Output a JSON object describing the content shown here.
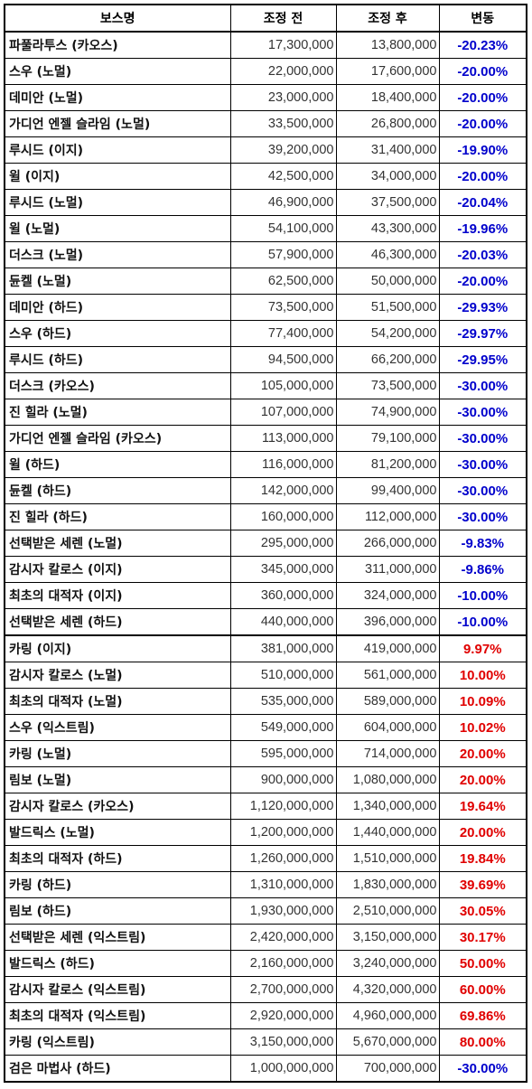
{
  "headers": {
    "boss": "보스명",
    "before": "조정 전",
    "after": "조정 후",
    "change": "변동"
  },
  "colors": {
    "decrease": "#0000cc",
    "increase": "#e00000"
  },
  "rows": [
    {
      "boss": "파풀라투스 (카오스)",
      "before": "17,300,000",
      "after": "13,800,000",
      "change": "-20.23%",
      "dir": "neg"
    },
    {
      "boss": "스우 (노멀)",
      "before": "22,000,000",
      "after": "17,600,000",
      "change": "-20.00%",
      "dir": "neg"
    },
    {
      "boss": "데미안 (노멀)",
      "before": "23,000,000",
      "after": "18,400,000",
      "change": "-20.00%",
      "dir": "neg"
    },
    {
      "boss": "가디언 엔젤 슬라임 (노멀)",
      "before": "33,500,000",
      "after": "26,800,000",
      "change": "-20.00%",
      "dir": "neg"
    },
    {
      "boss": "루시드 (이지)",
      "before": "39,200,000",
      "after": "31,400,000",
      "change": "-19.90%",
      "dir": "neg"
    },
    {
      "boss": "윌 (이지)",
      "before": "42,500,000",
      "after": "34,000,000",
      "change": "-20.00%",
      "dir": "neg"
    },
    {
      "boss": "루시드 (노멀)",
      "before": "46,900,000",
      "after": "37,500,000",
      "change": "-20.04%",
      "dir": "neg"
    },
    {
      "boss": "윌 (노멀)",
      "before": "54,100,000",
      "after": "43,300,000",
      "change": "-19.96%",
      "dir": "neg"
    },
    {
      "boss": "더스크 (노멀)",
      "before": "57,900,000",
      "after": "46,300,000",
      "change": "-20.03%",
      "dir": "neg"
    },
    {
      "boss": "듄켈 (노멀)",
      "before": "62,500,000",
      "after": "50,000,000",
      "change": "-20.00%",
      "dir": "neg"
    },
    {
      "boss": "데미안 (하드)",
      "before": "73,500,000",
      "after": "51,500,000",
      "change": "-29.93%",
      "dir": "neg"
    },
    {
      "boss": "스우 (하드)",
      "before": "77,400,000",
      "after": "54,200,000",
      "change": "-29.97%",
      "dir": "neg"
    },
    {
      "boss": "루시드 (하드)",
      "before": "94,500,000",
      "after": "66,200,000",
      "change": "-29.95%",
      "dir": "neg"
    },
    {
      "boss": "더스크 (카오스)",
      "before": "105,000,000",
      "after": "73,500,000",
      "change": "-30.00%",
      "dir": "neg"
    },
    {
      "boss": "진 힐라 (노멀)",
      "before": "107,000,000",
      "after": "74,900,000",
      "change": "-30.00%",
      "dir": "neg"
    },
    {
      "boss": "가디언 엔젤 슬라임 (카오스)",
      "before": "113,000,000",
      "after": "79,100,000",
      "change": "-30.00%",
      "dir": "neg"
    },
    {
      "boss": "윌 (하드)",
      "before": "116,000,000",
      "after": "81,200,000",
      "change": "-30.00%",
      "dir": "neg"
    },
    {
      "boss": "듄켈 (하드)",
      "before": "142,000,000",
      "after": "99,400,000",
      "change": "-30.00%",
      "dir": "neg"
    },
    {
      "boss": "진 힐라 (하드)",
      "before": "160,000,000",
      "after": "112,000,000",
      "change": "-30.00%",
      "dir": "neg"
    },
    {
      "boss": "선택받은 세렌 (노멀)",
      "before": "295,000,000",
      "after": "266,000,000",
      "change": "-9.83%",
      "dir": "neg"
    },
    {
      "boss": "감시자 칼로스 (이지)",
      "before": "345,000,000",
      "after": "311,000,000",
      "change": "-9.86%",
      "dir": "neg"
    },
    {
      "boss": "최초의 대적자 (이지)",
      "before": "360,000,000",
      "after": "324,000,000",
      "change": "-10.00%",
      "dir": "neg"
    },
    {
      "boss": "선택받은 세렌 (하드)",
      "before": "440,000,000",
      "after": "396,000,000",
      "change": "-10.00%",
      "dir": "neg"
    },
    {
      "boss": "카링 (이지)",
      "before": "381,000,000",
      "after": "419,000,000",
      "change": "9.97%",
      "dir": "pos",
      "section": true
    },
    {
      "boss": "감시자 칼로스 (노멀)",
      "before": "510,000,000",
      "after": "561,000,000",
      "change": "10.00%",
      "dir": "pos"
    },
    {
      "boss": "최초의 대적자 (노멀)",
      "before": "535,000,000",
      "after": "589,000,000",
      "change": "10.09%",
      "dir": "pos"
    },
    {
      "boss": "스우 (익스트림)",
      "before": "549,000,000",
      "after": "604,000,000",
      "change": "10.02%",
      "dir": "pos"
    },
    {
      "boss": "카링 (노멀)",
      "before": "595,000,000",
      "after": "714,000,000",
      "change": "20.00%",
      "dir": "pos"
    },
    {
      "boss": "림보 (노멀)",
      "before": "900,000,000",
      "after": "1,080,000,000",
      "change": "20.00%",
      "dir": "pos"
    },
    {
      "boss": "감시자 칼로스 (카오스)",
      "before": "1,120,000,000",
      "after": "1,340,000,000",
      "change": "19.64%",
      "dir": "pos"
    },
    {
      "boss": "발드릭스 (노멀)",
      "before": "1,200,000,000",
      "after": "1,440,000,000",
      "change": "20.00%",
      "dir": "pos"
    },
    {
      "boss": "최초의 대적자 (하드)",
      "before": "1,260,000,000",
      "after": "1,510,000,000",
      "change": "19.84%",
      "dir": "pos"
    },
    {
      "boss": "카링 (하드)",
      "before": "1,310,000,000",
      "after": "1,830,000,000",
      "change": "39.69%",
      "dir": "pos"
    },
    {
      "boss": "림보 (하드)",
      "before": "1,930,000,000",
      "after": "2,510,000,000",
      "change": "30.05%",
      "dir": "pos"
    },
    {
      "boss": "선택받은 세렌 (익스트림)",
      "before": "2,420,000,000",
      "after": "3,150,000,000",
      "change": "30.17%",
      "dir": "pos"
    },
    {
      "boss": "발드릭스 (하드)",
      "before": "2,160,000,000",
      "after": "3,240,000,000",
      "change": "50.00%",
      "dir": "pos"
    },
    {
      "boss": "감시자 칼로스 (익스트림)",
      "before": "2,700,000,000",
      "after": "4,320,000,000",
      "change": "60.00%",
      "dir": "pos"
    },
    {
      "boss": "최초의 대적자 (익스트림)",
      "before": "2,920,000,000",
      "after": "4,960,000,000",
      "change": "69.86%",
      "dir": "pos"
    },
    {
      "boss": "카링 (익스트림)",
      "before": "3,150,000,000",
      "after": "5,670,000,000",
      "change": "80.00%",
      "dir": "pos"
    },
    {
      "boss": "검은 마법사 (하드)",
      "before": "1,000,000,000",
      "after": "700,000,000",
      "change": "-30.00%",
      "dir": "neg"
    }
  ]
}
